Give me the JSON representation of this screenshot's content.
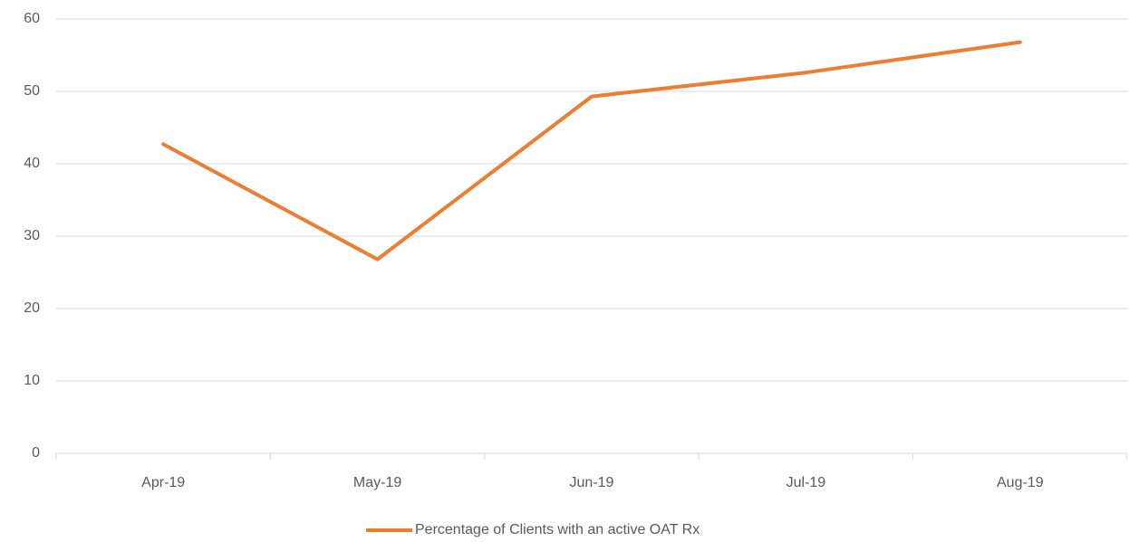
{
  "chart_data": {
    "type": "line",
    "categories": [
      "Apr-19",
      "May-19",
      "Jun-19",
      "Jul-19",
      "Aug-19"
    ],
    "series": [
      {
        "name": "Percentage of Clients with an active OAT Rx",
        "color": "#ed7d31",
        "values": [
          42.7,
          26.8,
          49.3,
          52.6,
          56.8
        ]
      }
    ],
    "ylim": [
      0,
      60
    ],
    "yticks": [
      0,
      10,
      20,
      30,
      40,
      50,
      60
    ],
    "grid": true,
    "legend": "bottom"
  }
}
